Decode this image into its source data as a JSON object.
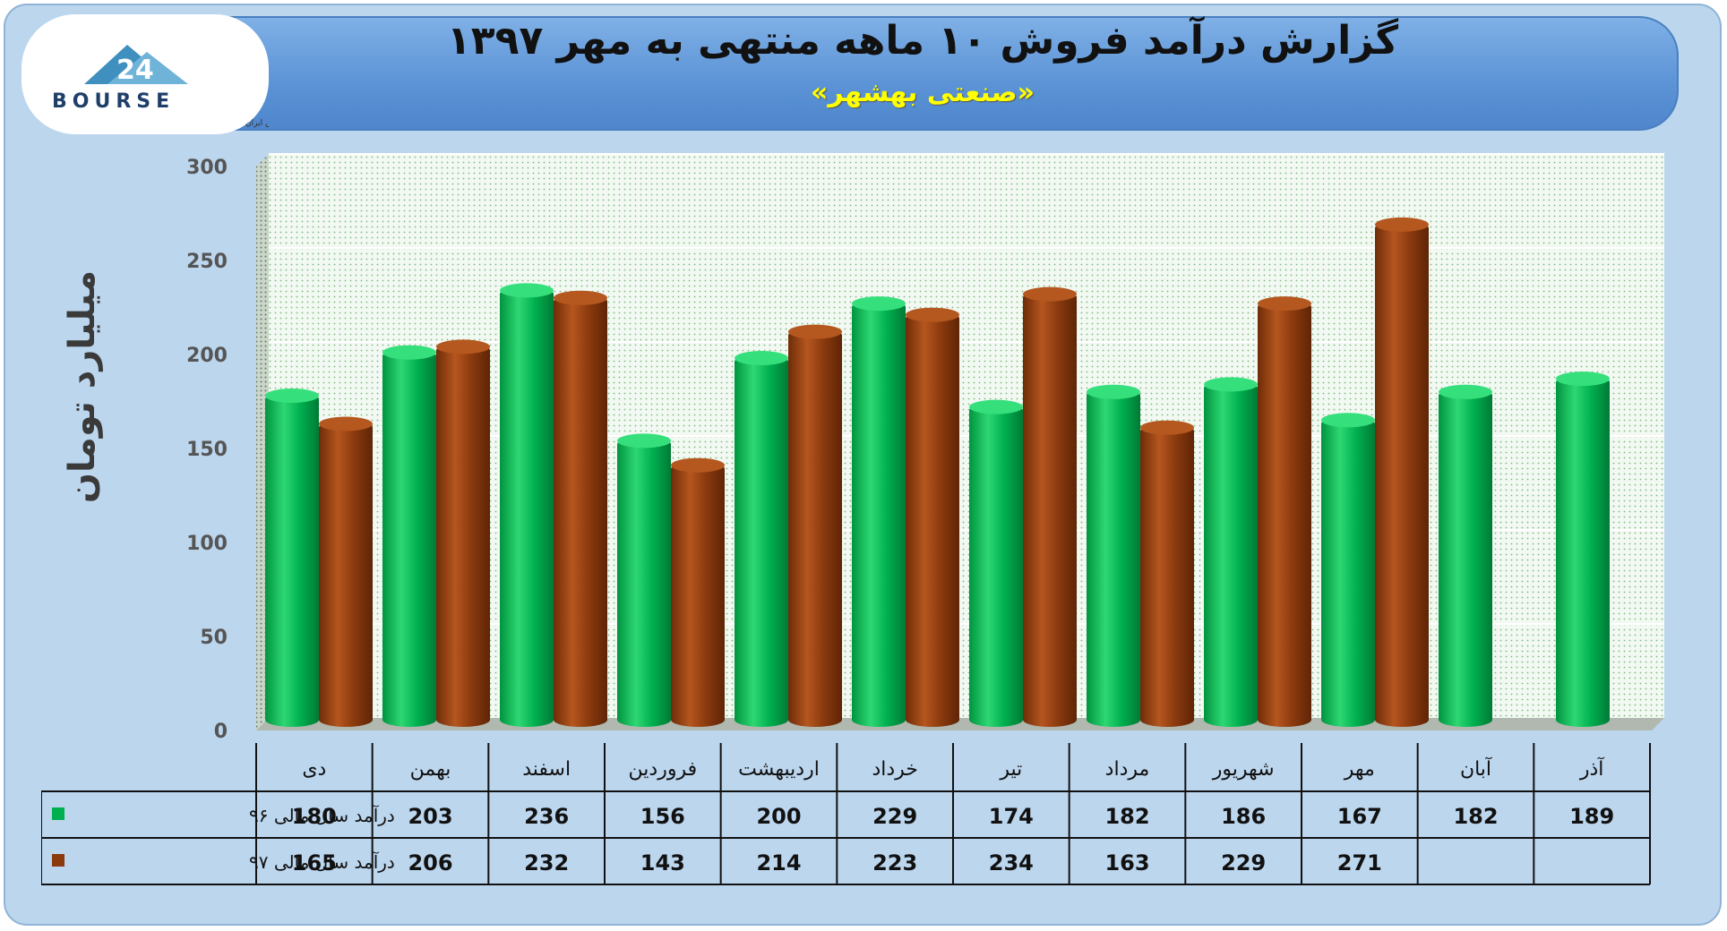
{
  "header": {
    "title": "گزارش درآمد فروش ۱۰ ماهه منتهی به مهر ۱۳۹۷",
    "subtitle": "«صنعتی بهشهر»"
  },
  "logo": {
    "text": "BOURSE",
    "caption": "پایگاه اطلاع رسانی و تحلیلی بورس ایران"
  },
  "colors": {
    "series96": "#00b050",
    "series97": "#8b3a0e",
    "frame": "#bcd6ee",
    "header": "#5b93d6",
    "subtitle": "#ffff00"
  },
  "chart_data": {
    "type": "bar",
    "title": "گزارش درآمد فروش ۱۰ ماهه منتهی به مهر ۱۳۹۷",
    "subtitle": "«صنعتی بهشهر»",
    "ylabel": "میلیارد تومان",
    "ylim": [
      0,
      300
    ],
    "yticks": [
      0,
      50,
      100,
      150,
      200,
      250,
      300
    ],
    "grid": true,
    "categories": [
      "دی",
      "بهمن",
      "اسفند",
      "فروردین",
      "اردیبهشت",
      "خرداد",
      "تیر",
      "مرداد",
      "شهریور",
      "مهر",
      "آبان",
      "آذر"
    ],
    "series": [
      {
        "name": "درآمد سال مالی ۹۶",
        "color": "#00b050",
        "values": [
          180,
          203,
          236,
          156,
          200,
          229,
          174,
          182,
          186,
          167,
          182,
          189
        ]
      },
      {
        "name": "درآمد سال مالی ۹۷",
        "color": "#8b3a0e",
        "values": [
          165,
          206,
          232,
          143,
          214,
          223,
          234,
          163,
          229,
          271,
          null,
          null
        ]
      }
    ],
    "legend": "data-table"
  }
}
